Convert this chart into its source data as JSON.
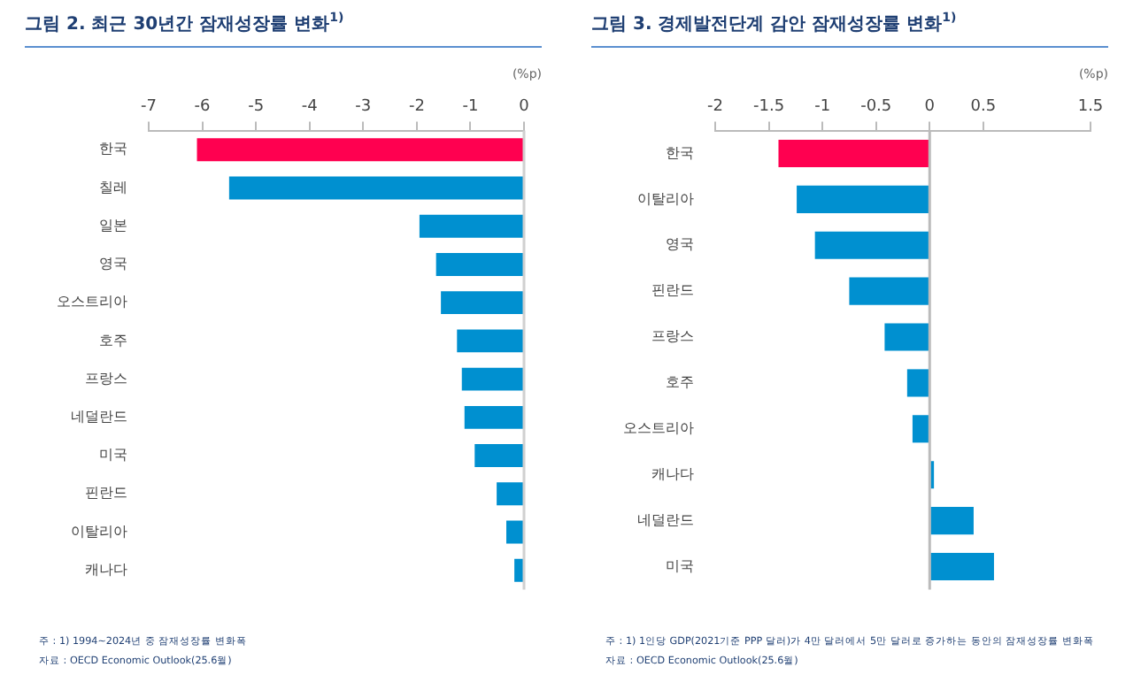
{
  "chart_data": [
    {
      "type": "bar",
      "orientation": "horizontal",
      "title": "그림 2. 최근 30년간 잠재성장률 변화$^{1)}$",
      "xlabel": "(%p)",
      "categories": [
        "한국",
        "칠레",
        "일본",
        "영국",
        "오스트리아",
        "호주",
        "프랑스",
        "네덜란드",
        "미국",
        "핀란드",
        "이탈리아",
        "캐나다"
      ],
      "values": [
        -6.1,
        -5.5,
        -1.95,
        -1.64,
        -1.55,
        -1.25,
        -1.16,
        -1.11,
        -0.92,
        -0.51,
        -0.33,
        -0.18
      ],
      "colors": [
        "#ff0050",
        "#0090d0",
        "#0090d0",
        "#0090d0",
        "#0090d0",
        "#0090d0",
        "#0090d0",
        "#0090d0",
        "#0090d0",
        "#0090d0",
        "#0090d0",
        "#0090d0"
      ],
      "xlim": [
        -7,
        0
      ],
      "xticks": [
        -7,
        -6,
        -5,
        -4,
        -3,
        -2,
        -1,
        0
      ],
      "ref_lines": [
        {
          "axis": "x",
          "value": 0,
          "color": "#d0d0d0"
        }
      ],
      "legend": false,
      "grid": false,
      "annotations": [
        "주 : 1) 1994~2024년 중 잠재성장률 변화폭",
        "자료 : OECD Economic Outlook(25.6월)"
      ]
    },
    {
      "type": "bar",
      "orientation": "horizontal",
      "title": "그림 3. 경제발전단계 감안 잠재성장률 변화$^{1)}$",
      "xlabel": "(%p)",
      "categories": [
        "한국",
        "이탈리아",
        "영국",
        "핀란드",
        "프랑스",
        "호주",
        "오스트리아",
        "캐나다",
        "네덜란드",
        "미국"
      ],
      "values": [
        -1.41,
        -1.24,
        -1.07,
        -0.75,
        -0.42,
        -0.21,
        -0.16,
        0.04,
        0.41,
        0.6
      ],
      "colors": [
        "#ff0050",
        "#0090d0",
        "#0090d0",
        "#0090d0",
        "#0090d0",
        "#0090d0",
        "#0090d0",
        "#0090d0",
        "#0090d0",
        "#0090d0"
      ],
      "xlim": [
        -2,
        1.5
      ],
      "xticks": [
        -2,
        -1.5,
        -1,
        -0.5,
        0,
        0.5,
        1.5
      ],
      "ref_lines": [
        {
          "axis": "x",
          "value": 0,
          "color": "#bbbbbb"
        }
      ],
      "legend": false,
      "grid": false,
      "annotations": [
        "주 : 1) 1인당 GDP(2021기준 PPP 달러)가 4만 달러에서 5만 달러로 증가하는 동안의 잠재성장률 변화폭",
        "자료 : OECD Economic Outlook(25.6월)"
      ]
    }
  ]
}
